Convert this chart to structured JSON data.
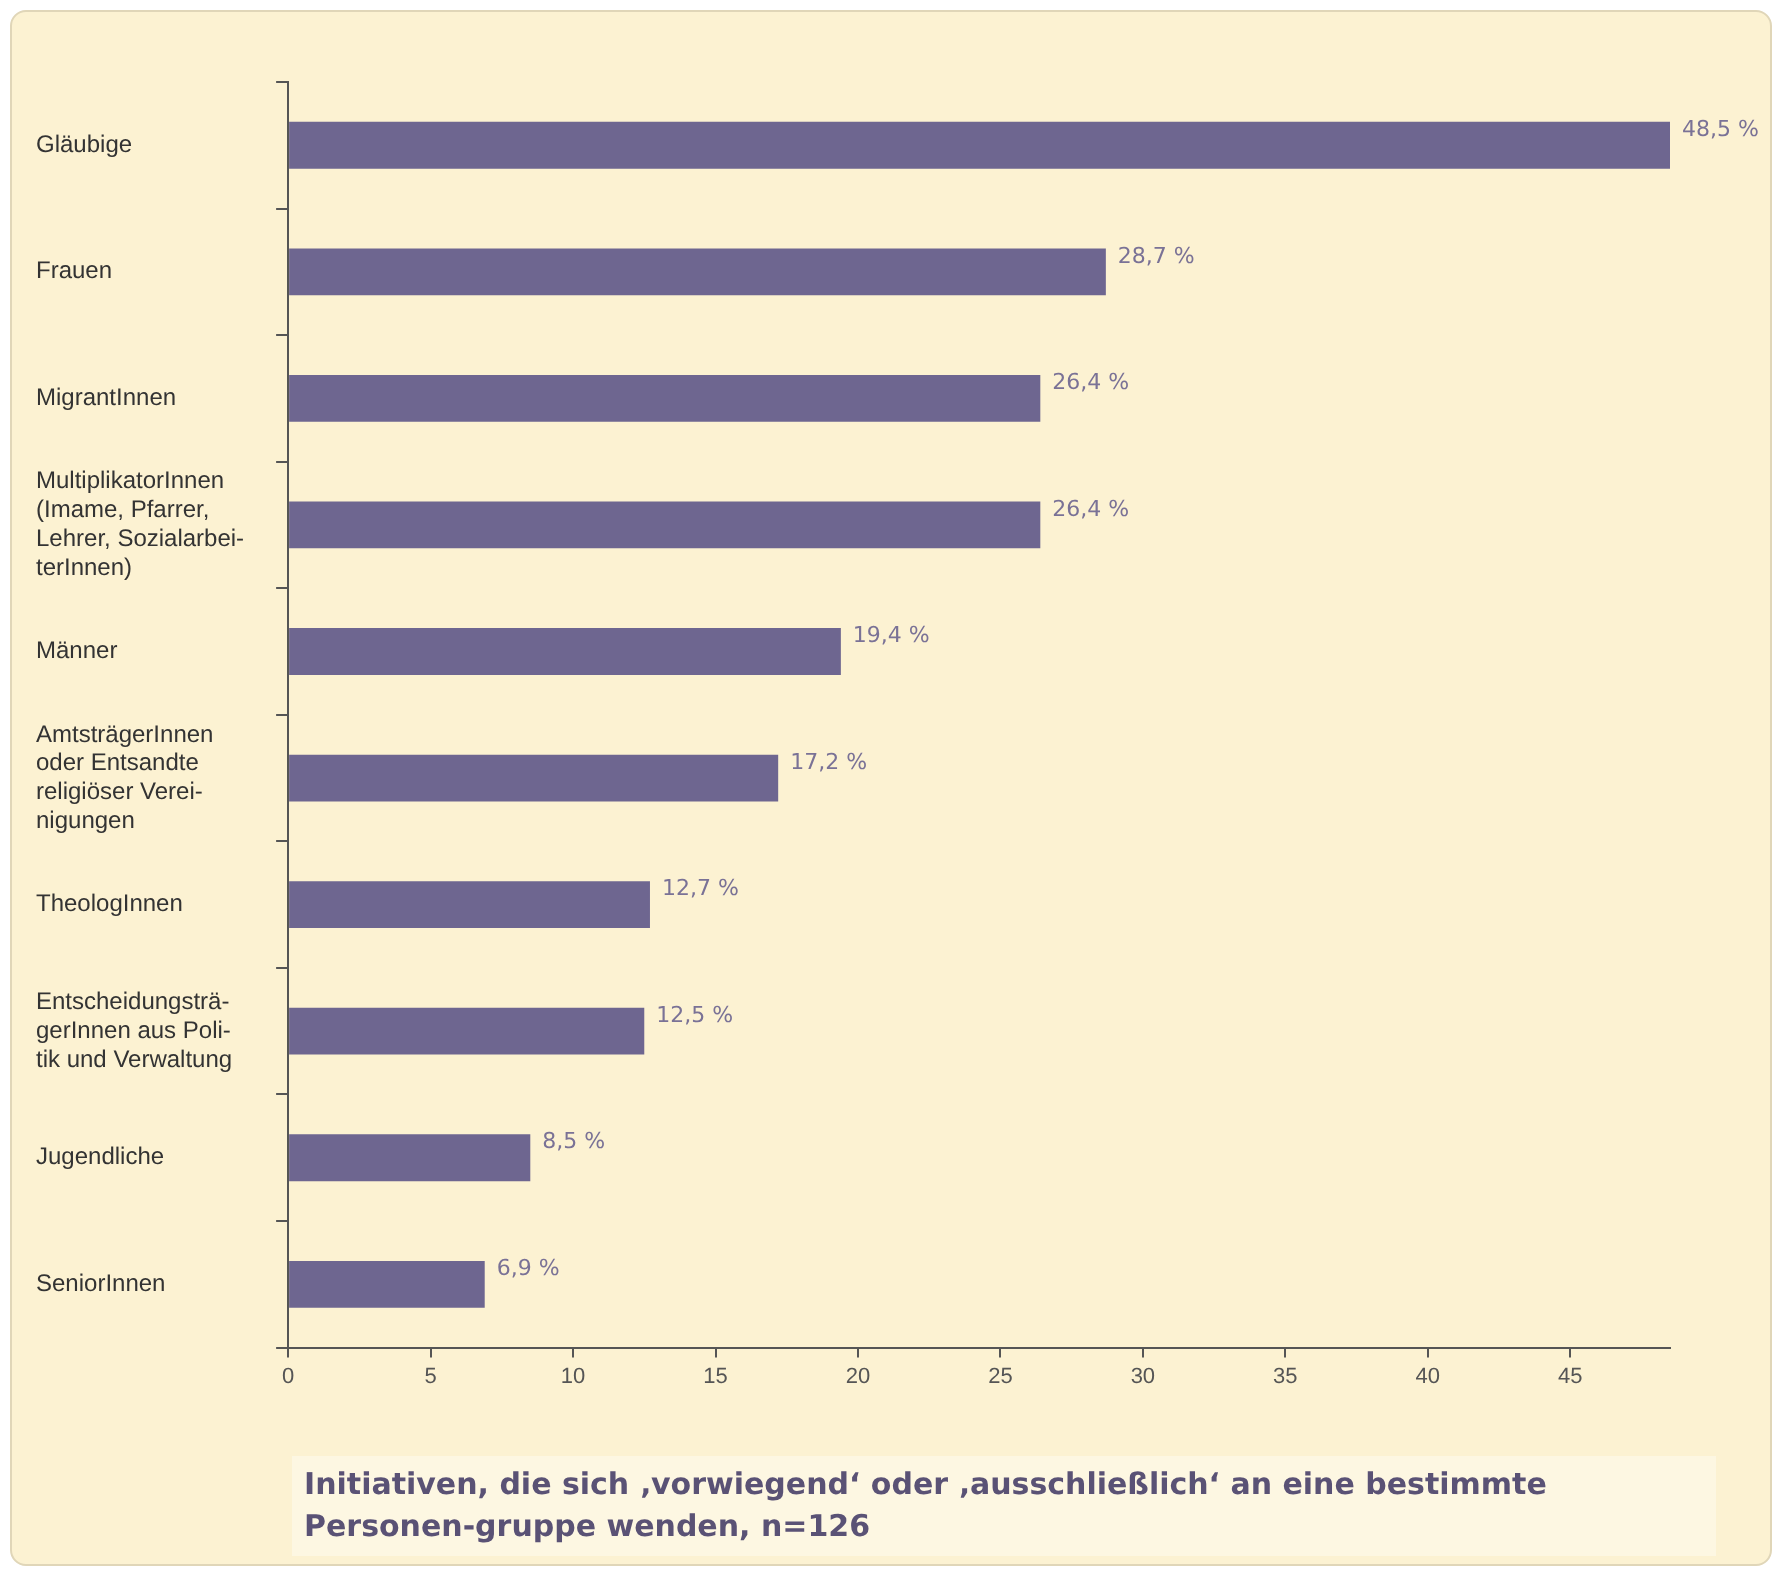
{
  "chart_data": {
    "type": "bar",
    "orientation": "horizontal",
    "title": "Initiativen, die sich ‚vorwiegend‘ oder ‚ausschließlich‘ an eine bestimmte Personen-gruppe wenden, n=126",
    "categories": [
      "Gläubige",
      "Frauen",
      "MigrantInnen",
      "MultiplikatorInnen\n(Imame, Pfarrer,\nLehrer, Sozialarbei-\nterInnen)",
      "Männer",
      "AmtsträgerInnen\noder Entsandte\nreligiöser Verei-\nnigungen",
      "TheologInnen",
      "Entscheidungsträ-\ngerInnen aus Poli-\ntik und Verwaltung",
      "Jugendliche",
      "SeniorInnen"
    ],
    "values": [
      48.5,
      28.7,
      26.4,
      26.4,
      19.4,
      17.2,
      12.7,
      12.5,
      8.5,
      6.9
    ],
    "value_labels": [
      "48,5 %",
      "28,7 %",
      "26,4 %",
      "26,4 %",
      "19,4 %",
      "17,2 %",
      "12,7 %",
      "12,5 %",
      "8,5 %",
      "6,9 %"
    ],
    "color": "#6e6690",
    "xlim": [
      0,
      48.5
    ],
    "xticks": [
      0,
      5,
      10,
      15,
      20,
      25,
      30,
      35,
      40,
      45
    ],
    "grid": false,
    "legend": false
  }
}
